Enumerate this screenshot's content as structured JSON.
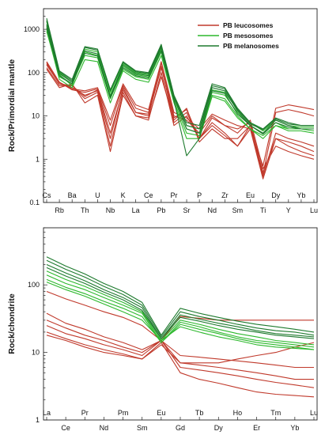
{
  "colors": {
    "leucosome": "#c0392b",
    "mesosome": "#2db82d",
    "melanosome": "#1e7a2e"
  },
  "chart_data": [
    {
      "type": "line",
      "scale": "log",
      "ylabel": "Rock/Primordial mantle",
      "ylim": [
        0.1,
        3000
      ],
      "yticks": [
        0.1,
        1,
        10,
        100,
        1000
      ],
      "ytick_labels": [
        "0.1",
        "1",
        "10",
        "100",
        "1000"
      ],
      "categories": [
        "Cs",
        "Rb",
        "Ba",
        "Th",
        "U",
        "Nb",
        "K",
        "La",
        "Ce",
        "Pb",
        "Pr",
        "Sr",
        "P",
        "Nd",
        "Zr",
        "Sm",
        "Eu",
        "Ti",
        "Dy",
        "Y",
        "Yb",
        "Lu"
      ],
      "legend": {
        "position": "top-right",
        "entries": [
          "PB leucosomes",
          "PB mesosomes",
          "PB melanosomes"
        ]
      },
      "series": [
        {
          "group": "leucosome",
          "values": [
            150,
            55,
            45,
            30,
            38,
            3,
            45,
            12,
            10,
            140,
            7,
            12,
            3,
            7,
            4,
            2,
            6,
            0.4,
            4,
            3,
            2.5,
            2
          ]
        },
        {
          "group": "leucosome",
          "values": [
            130,
            50,
            50,
            25,
            35,
            2,
            35,
            10,
            8,
            100,
            6,
            10,
            3,
            6,
            3.5,
            2,
            5,
            0.35,
            3,
            2.5,
            2,
            1.5
          ]
        },
        {
          "group": "leucosome",
          "values": [
            120,
            45,
            55,
            20,
            30,
            1.5,
            30,
            10,
            9,
            80,
            8,
            15,
            2.5,
            5,
            3,
            3,
            6,
            0.5,
            3,
            2,
            1.5,
            1.2
          ]
        },
        {
          "group": "leucosome",
          "values": [
            170,
            60,
            40,
            35,
            42,
            6,
            50,
            15,
            12,
            170,
            10,
            8,
            4,
            10,
            6,
            4,
            8,
            0.6,
            2,
            1.5,
            1.2,
            1
          ]
        },
        {
          "group": "leucosome",
          "values": [
            160,
            55,
            50,
            28,
            40,
            4,
            40,
            12,
            11,
            130,
            9,
            14,
            3,
            9,
            6,
            5,
            7,
            0.45,
            12,
            14,
            12,
            10
          ]
        },
        {
          "group": "leucosome",
          "values": [
            180,
            60,
            42,
            38,
            45,
            8,
            55,
            18,
            14,
            180,
            12,
            9,
            5,
            11,
            8,
            6,
            5,
            0.7,
            15,
            18,
            16,
            14
          ]
        },
        {
          "group": "mesosome",
          "values": [
            1200,
            90,
            50,
            300,
            250,
            30,
            140,
            90,
            80,
            350,
            25,
            5,
            4,
            35,
            30,
            12,
            6,
            4,
            7,
            5,
            5,
            5
          ]
        },
        {
          "group": "mesosome",
          "values": [
            900,
            80,
            55,
            250,
            220,
            25,
            120,
            80,
            70,
            300,
            22,
            4,
            3.5,
            30,
            25,
            10,
            5,
            3.5,
            6,
            5,
            5,
            4.5
          ]
        },
        {
          "group": "mesosome",
          "values": [
            1500,
            100,
            60,
            350,
            300,
            35,
            160,
            100,
            90,
            400,
            28,
            6,
            5,
            40,
            35,
            14,
            7,
            4.5,
            8,
            6,
            5.5,
            5.5
          ]
        },
        {
          "group": "mesosome",
          "values": [
            1000,
            70,
            45,
            200,
            180,
            20,
            110,
            70,
            60,
            250,
            20,
            3,
            3,
            28,
            22,
            9,
            5,
            3,
            6,
            4.5,
            4.5,
            4
          ]
        },
        {
          "group": "melanosome",
          "values": [
            1800,
            110,
            70,
            400,
            350,
            40,
            180,
            110,
            100,
            450,
            30,
            7,
            6,
            55,
            45,
            15,
            7,
            5,
            9,
            7,
            6,
            6
          ]
        },
        {
          "group": "melanosome",
          "values": [
            1300,
            95,
            60,
            320,
            270,
            28,
            150,
            95,
            85,
            380,
            26,
            5,
            4,
            45,
            38,
            13,
            6,
            4,
            8,
            6,
            5,
            5
          ]
        },
        {
          "group": "melanosome",
          "values": [
            1600,
            105,
            65,
            380,
            330,
            38,
            170,
            105,
            95,
            420,
            29,
            6,
            5,
            50,
            42,
            14,
            6.5,
            4.8,
            8.5,
            6.5,
            6,
            6
          ]
        },
        {
          "group": "melanosome",
          "values": [
            1100,
            85,
            55,
            280,
            240,
            26,
            130,
            85,
            75,
            320,
            23,
            1.2,
            3,
            38,
            33,
            11,
            6,
            3.8,
            7,
            5.5,
            5,
            5
          ]
        }
      ]
    },
    {
      "type": "line",
      "scale": "log",
      "ylabel": "Rock/chondrite",
      "ylim": [
        1,
        700
      ],
      "yticks": [
        1,
        10,
        100
      ],
      "ytick_labels": [
        "1",
        "10",
        "100"
      ],
      "categories": [
        "La",
        "Ce",
        "Pr",
        "Nd",
        "Pm",
        "Sm",
        "Eu",
        "Gd",
        "Tb",
        "Dy",
        "Ho",
        "Er",
        "Tm",
        "Yb",
        "Lu"
      ],
      "series": [
        {
          "group": "leucosome",
          "values": [
            80,
            62,
            50,
            40,
            33,
            25,
            15,
            34,
            32,
            30,
            30,
            30,
            30,
            30,
            30
          ]
        },
        {
          "group": "leucosome",
          "values": [
            38,
            27,
            22,
            17,
            14,
            11,
            15,
            9,
            8.5,
            8,
            7.5,
            7,
            6.5,
            6,
            6
          ]
        },
        {
          "group": "leucosome",
          "values": [
            30,
            23,
            18,
            15,
            12,
            10,
            15,
            7,
            6.5,
            6,
            5.5,
            5,
            4.5,
            4,
            4
          ]
        },
        {
          "group": "leucosome",
          "values": [
            25,
            19,
            16,
            13,
            11,
            9,
            15,
            6,
            5.5,
            5,
            4.5,
            4,
            3.6,
            3.3,
            3
          ]
        },
        {
          "group": "leucosome",
          "values": [
            20,
            16,
            13,
            11,
            9.5,
            8,
            14,
            5,
            4,
            3.5,
            3,
            2.6,
            2.4,
            2.3,
            2.2
          ]
        },
        {
          "group": "leucosome",
          "values": [
            18,
            15,
            12,
            10,
            9,
            8,
            13,
            7,
            7,
            7,
            8,
            9,
            10,
            12,
            14
          ]
        },
        {
          "group": "mesosome",
          "values": [
            160,
            120,
            95,
            72,
            55,
            40,
            15,
            30,
            26,
            22,
            19,
            17,
            15,
            14,
            13
          ]
        },
        {
          "group": "mesosome",
          "values": [
            140,
            105,
            85,
            65,
            50,
            38,
            14,
            28,
            24,
            20,
            17,
            15,
            14,
            13,
            12
          ]
        },
        {
          "group": "mesosome",
          "values": [
            120,
            92,
            74,
            57,
            45,
            34,
            14,
            26,
            22,
            19,
            16,
            14,
            13,
            12,
            11
          ]
        },
        {
          "group": "mesosome",
          "values": [
            110,
            85,
            68,
            52,
            40,
            30,
            15,
            24,
            20,
            17,
            15,
            13,
            12,
            11.5,
            11
          ]
        },
        {
          "group": "melanosome",
          "values": [
            260,
            190,
            145,
            105,
            80,
            55,
            18,
            45,
            38,
            33,
            29,
            26,
            24,
            22,
            20
          ]
        },
        {
          "group": "melanosome",
          "values": [
            230,
            170,
            130,
            95,
            72,
            50,
            17,
            40,
            34,
            30,
            26,
            23,
            21,
            20,
            18
          ]
        },
        {
          "group": "melanosome",
          "values": [
            200,
            150,
            115,
            85,
            65,
            46,
            16,
            36,
            31,
            27,
            24,
            21,
            19,
            18,
            17
          ]
        },
        {
          "group": "melanosome",
          "values": [
            180,
            135,
            105,
            78,
            60,
            42,
            16,
            33,
            29,
            25,
            22,
            20,
            18,
            17,
            16
          ]
        }
      ]
    }
  ]
}
